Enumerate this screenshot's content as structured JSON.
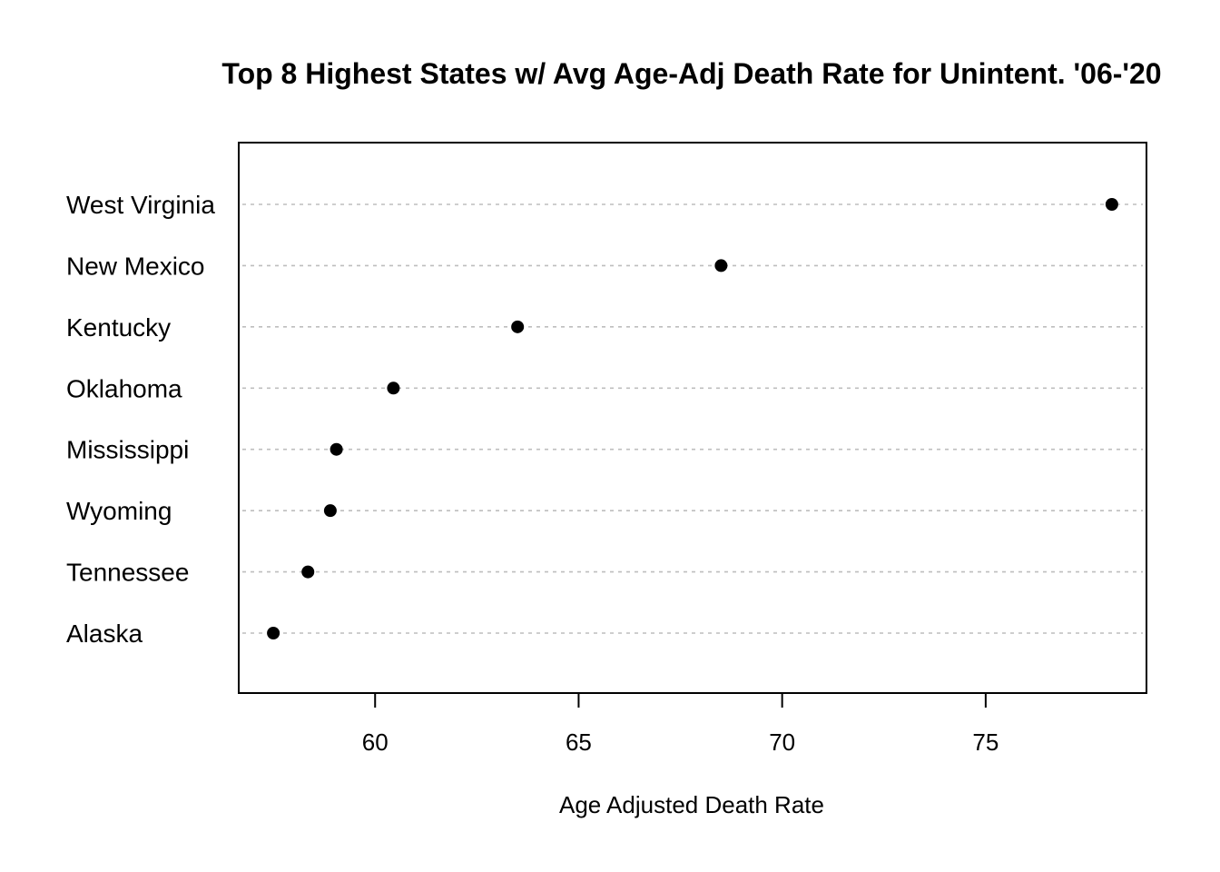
{
  "chart_data": {
    "type": "scatter",
    "title": "Top 8 Highest States w/ Avg Age-Adj Death Rate for Unintent. '06-'20",
    "xlabel": "Age Adjusted Death Rate",
    "ylabel": "",
    "categories": [
      "West Virginia",
      "New Mexico",
      "Kentucky",
      "Oklahoma",
      "Mississippi",
      "Wyoming",
      "Tennessee",
      "Alaska"
    ],
    "values": [
      78.1,
      68.5,
      63.5,
      60.45,
      59.05,
      58.9,
      58.35,
      57.5
    ],
    "xlim": [
      56.65,
      78.95
    ],
    "x_ticks": [
      60,
      65,
      70,
      75
    ],
    "x_tick_labels": [
      "60",
      "65",
      "70",
      "75"
    ],
    "grid": "horizontal dotted lines per category",
    "legend": "none",
    "colors": {
      "points": "#000000",
      "gridlines": "#bebebe",
      "frame": "#000000"
    }
  }
}
